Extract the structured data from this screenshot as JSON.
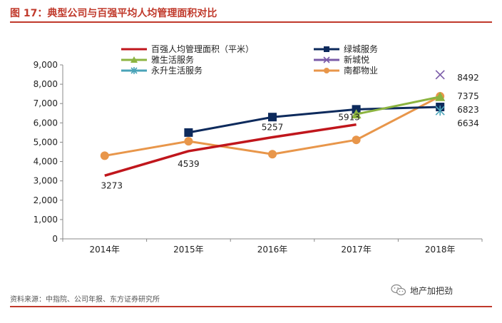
{
  "figure": {
    "title": "图 17：典型公司与百强平均人均管理面积对比",
    "source": "资料来源：中指院、公司年报、东方证券研究所",
    "watermark": "地产加把劲",
    "watermark_icon": "wechat-icon"
  },
  "chart_data": {
    "type": "line",
    "title": "",
    "xlabel": "",
    "ylabel": "",
    "categories": [
      "2014年",
      "2015年",
      "2016年",
      "2017年",
      "2018年"
    ],
    "ylim": [
      0,
      9000
    ],
    "yticks": [
      "0",
      "1,000",
      "2,000",
      "3,000",
      "4,000",
      "5,000",
      "6,000",
      "7,000",
      "8,000",
      "9,000"
    ],
    "grid": false,
    "legend": "top",
    "series": [
      {
        "name": "百强人均管理面积（平米）",
        "color": "#c0161c",
        "marker": "none",
        "values": [
          3273,
          4539,
          5257,
          5913,
          null
        ],
        "labels": [
          "3273",
          "4539",
          "5257",
          "5913",
          null
        ]
      },
      {
        "name": "绿城服务",
        "color": "#0d2a5c",
        "marker": "square",
        "values": [
          null,
          5500,
          6300,
          6700,
          6823
        ],
        "labels": [
          null,
          null,
          null,
          null,
          "6823"
        ]
      },
      {
        "name": "雅生活服务",
        "color": "#8cb440",
        "marker": "triangle",
        "values": [
          null,
          null,
          null,
          6450,
          7350
        ],
        "labels": [
          null,
          null,
          null,
          null,
          null
        ]
      },
      {
        "name": "新城悦",
        "color": "#7a5ba8",
        "marker": "x",
        "values": [
          null,
          null,
          null,
          null,
          8492
        ],
        "labels": [
          null,
          null,
          null,
          null,
          "8492"
        ]
      },
      {
        "name": "永升生活服务",
        "color": "#4aa3b8",
        "marker": "asterisk",
        "values": [
          null,
          null,
          null,
          null,
          6634
        ],
        "labels": [
          null,
          null,
          null,
          null,
          "6634"
        ]
      },
      {
        "name": "南都物业",
        "color": "#e8964a",
        "marker": "circle",
        "values": [
          4300,
          5050,
          4380,
          5120,
          7375
        ],
        "labels": [
          null,
          null,
          null,
          null,
          "7375"
        ]
      }
    ]
  }
}
